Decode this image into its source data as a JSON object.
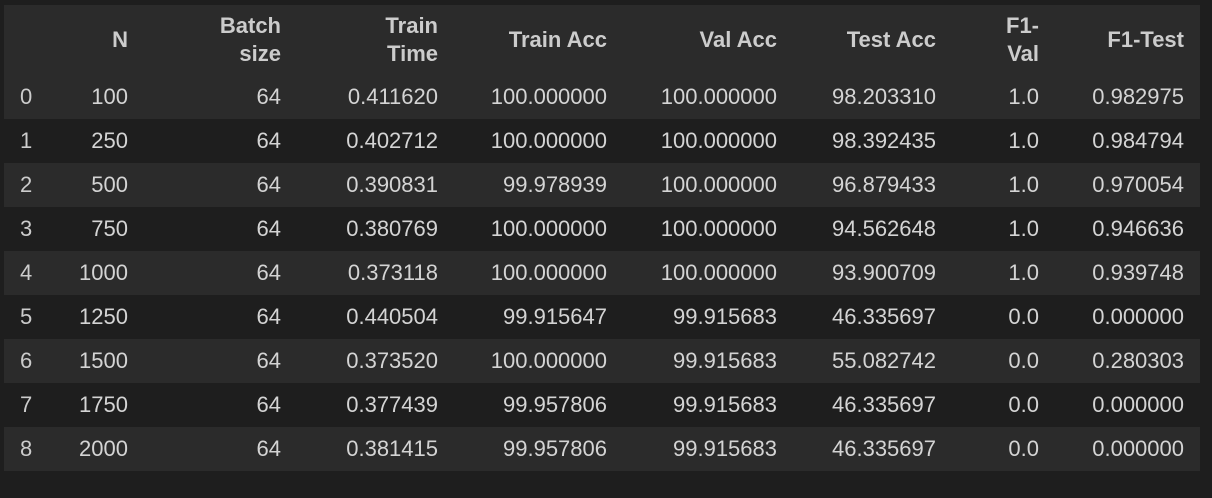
{
  "table": {
    "headers": [
      [
        "N"
      ],
      [
        "Batch",
        "size"
      ],
      [
        "Train",
        "Time"
      ],
      [
        "Train Acc"
      ],
      [
        "Val Acc"
      ],
      [
        "Test Acc"
      ],
      [
        "F1-",
        "Val"
      ],
      [
        "F1-Test"
      ]
    ],
    "rows": [
      {
        "index": "0",
        "cells": [
          "100",
          "64",
          "0.411620",
          "100.000000",
          "100.000000",
          "98.203310",
          "1.0",
          "0.982975"
        ]
      },
      {
        "index": "1",
        "cells": [
          "250",
          "64",
          "0.402712",
          "100.000000",
          "100.000000",
          "98.392435",
          "1.0",
          "0.984794"
        ]
      },
      {
        "index": "2",
        "cells": [
          "500",
          "64",
          "0.390831",
          "99.978939",
          "100.000000",
          "96.879433",
          "1.0",
          "0.970054"
        ]
      },
      {
        "index": "3",
        "cells": [
          "750",
          "64",
          "0.380769",
          "100.000000",
          "100.000000",
          "94.562648",
          "1.0",
          "0.946636"
        ]
      },
      {
        "index": "4",
        "cells": [
          "1000",
          "64",
          "0.373118",
          "100.000000",
          "100.000000",
          "93.900709",
          "1.0",
          "0.939748"
        ]
      },
      {
        "index": "5",
        "cells": [
          "1250",
          "64",
          "0.440504",
          "99.915647",
          "99.915683",
          "46.335697",
          "0.0",
          "0.000000"
        ]
      },
      {
        "index": "6",
        "cells": [
          "1500",
          "64",
          "0.373520",
          "100.000000",
          "99.915683",
          "55.082742",
          "0.0",
          "0.280303"
        ]
      },
      {
        "index": "7",
        "cells": [
          "1750",
          "64",
          "0.377439",
          "99.957806",
          "99.915683",
          "46.335697",
          "0.0",
          "0.000000"
        ]
      },
      {
        "index": "8",
        "cells": [
          "2000",
          "64",
          "0.381415",
          "99.957806",
          "99.915683",
          "46.335697",
          "0.0",
          "0.000000"
        ]
      }
    ]
  },
  "colors": {
    "background": "#1e1e1e",
    "stripe": "#2b2b2b",
    "text": "#d4d4d4"
  }
}
